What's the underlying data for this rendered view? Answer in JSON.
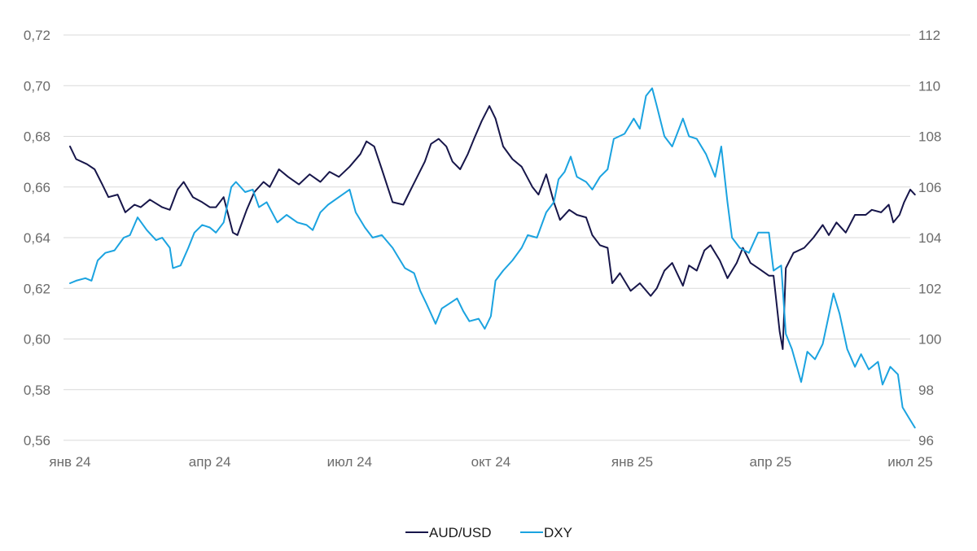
{
  "chart_data": {
    "type": "line",
    "title": "",
    "xlabel": "",
    "ylabel": "",
    "grid": true,
    "legend_position": "bottom",
    "x_tick_labels": [
      "янв 24",
      "апр 24",
      "июл 24",
      "окт 24",
      "янв 25",
      "апр 25",
      "июл 25"
    ],
    "x_tick_dates": [
      "2024-01-01",
      "2024-04-01",
      "2024-07-01",
      "2024-10-01",
      "2025-01-01",
      "2025-04-01",
      "2025-07-01"
    ],
    "xlim": [
      "2024-01-01",
      "2025-07-04"
    ],
    "y_left": {
      "ylim": [
        0.56,
        0.72
      ],
      "ticks": [
        0.56,
        0.58,
        0.6,
        0.62,
        0.64,
        0.66,
        0.68,
        0.7,
        0.72
      ],
      "tick_labels": [
        "0,56",
        "0,58",
        "0,60",
        "0,62",
        "0,64",
        "0,66",
        "0,68",
        "0,70",
        "0,72"
      ]
    },
    "y_right": {
      "ylim": [
        96,
        112
      ],
      "ticks": [
        96,
        98,
        100,
        102,
        104,
        106,
        108,
        110,
        112
      ],
      "tick_labels": [
        "96",
        "98",
        "100",
        "102",
        "104",
        "106",
        "108",
        "110",
        "112"
      ]
    },
    "series": [
      {
        "name": "AUD/USD",
        "axis": "left",
        "color": "#17164a",
        "points": [
          [
            "2024-01-01",
            0.676
          ],
          [
            "2024-01-05",
            0.671
          ],
          [
            "2024-01-12",
            0.669
          ],
          [
            "2024-01-17",
            0.667
          ],
          [
            "2024-01-22",
            0.661
          ],
          [
            "2024-01-26",
            0.656
          ],
          [
            "2024-02-01",
            0.657
          ],
          [
            "2024-02-06",
            0.65
          ],
          [
            "2024-02-12",
            0.653
          ],
          [
            "2024-02-16",
            0.652
          ],
          [
            "2024-02-22",
            0.655
          ],
          [
            "2024-03-01",
            0.652
          ],
          [
            "2024-03-06",
            0.651
          ],
          [
            "2024-03-11",
            0.659
          ],
          [
            "2024-03-15",
            0.662
          ],
          [
            "2024-03-21",
            0.656
          ],
          [
            "2024-03-27",
            0.654
          ],
          [
            "2024-04-01",
            0.652
          ],
          [
            "2024-04-05",
            0.652
          ],
          [
            "2024-04-10",
            0.656
          ],
          [
            "2024-04-16",
            0.642
          ],
          [
            "2024-04-19",
            0.641
          ],
          [
            "2024-04-25",
            0.651
          ],
          [
            "2024-04-30",
            0.658
          ],
          [
            "2024-05-06",
            0.662
          ],
          [
            "2024-05-10",
            0.66
          ],
          [
            "2024-05-16",
            0.667
          ],
          [
            "2024-05-22",
            0.664
          ],
          [
            "2024-05-29",
            0.661
          ],
          [
            "2024-06-05",
            0.665
          ],
          [
            "2024-06-12",
            0.662
          ],
          [
            "2024-06-18",
            0.666
          ],
          [
            "2024-06-24",
            0.664
          ],
          [
            "2024-07-01",
            0.668
          ],
          [
            "2024-07-08",
            0.673
          ],
          [
            "2024-07-12",
            0.678
          ],
          [
            "2024-07-17",
            0.676
          ],
          [
            "2024-07-22",
            0.667
          ],
          [
            "2024-07-29",
            0.654
          ],
          [
            "2024-08-05",
            0.653
          ],
          [
            "2024-08-09",
            0.658
          ],
          [
            "2024-08-14",
            0.664
          ],
          [
            "2024-08-19",
            0.67
          ],
          [
            "2024-08-23",
            0.677
          ],
          [
            "2024-08-28",
            0.679
          ],
          [
            "2024-09-02",
            0.676
          ],
          [
            "2024-09-06",
            0.67
          ],
          [
            "2024-09-11",
            0.667
          ],
          [
            "2024-09-16",
            0.673
          ],
          [
            "2024-09-20",
            0.679
          ],
          [
            "2024-09-25",
            0.686
          ],
          [
            "2024-09-30",
            0.692
          ],
          [
            "2024-10-04",
            0.687
          ],
          [
            "2024-10-09",
            0.676
          ],
          [
            "2024-10-15",
            0.671
          ],
          [
            "2024-10-21",
            0.668
          ],
          [
            "2024-10-28",
            0.66
          ],
          [
            "2024-11-01",
            0.657
          ],
          [
            "2024-11-06",
            0.665
          ],
          [
            "2024-11-11",
            0.654
          ],
          [
            "2024-11-15",
            0.647
          ],
          [
            "2024-11-21",
            0.651
          ],
          [
            "2024-11-26",
            0.649
          ],
          [
            "2024-12-02",
            0.648
          ],
          [
            "2024-12-06",
            0.641
          ],
          [
            "2024-12-11",
            0.637
          ],
          [
            "2024-12-16",
            0.636
          ],
          [
            "2024-12-19",
            0.622
          ],
          [
            "2024-12-24",
            0.626
          ],
          [
            "2024-12-31",
            0.619
          ],
          [
            "2025-01-06",
            0.622
          ],
          [
            "2025-01-13",
            0.617
          ],
          [
            "2025-01-17",
            0.62
          ],
          [
            "2025-01-22",
            0.627
          ],
          [
            "2025-01-27",
            0.63
          ],
          [
            "2025-02-03",
            0.621
          ],
          [
            "2025-02-07",
            0.629
          ],
          [
            "2025-02-12",
            0.627
          ],
          [
            "2025-02-17",
            0.635
          ],
          [
            "2025-02-21",
            0.637
          ],
          [
            "2025-02-27",
            0.631
          ],
          [
            "2025-03-04",
            0.624
          ],
          [
            "2025-03-10",
            0.63
          ],
          [
            "2025-03-14",
            0.636
          ],
          [
            "2025-03-19",
            0.63
          ],
          [
            "2025-03-24",
            0.628
          ],
          [
            "2025-03-31",
            0.625
          ],
          [
            "2025-04-03",
            0.625
          ],
          [
            "2025-04-07",
            0.603
          ],
          [
            "2025-04-09",
            0.596
          ],
          [
            "2025-04-11",
            0.628
          ],
          [
            "2025-04-16",
            0.634
          ],
          [
            "2025-04-23",
            0.636
          ],
          [
            "2025-04-29",
            0.64
          ],
          [
            "2025-05-05",
            0.645
          ],
          [
            "2025-05-09",
            0.641
          ],
          [
            "2025-05-14",
            0.646
          ],
          [
            "2025-05-20",
            0.642
          ],
          [
            "2025-05-26",
            0.649
          ],
          [
            "2025-06-02",
            0.649
          ],
          [
            "2025-06-06",
            0.651
          ],
          [
            "2025-06-12",
            0.65
          ],
          [
            "2025-06-17",
            0.653
          ],
          [
            "2025-06-20",
            0.646
          ],
          [
            "2025-06-24",
            0.649
          ],
          [
            "2025-06-27",
            0.654
          ],
          [
            "2025-07-01",
            0.659
          ],
          [
            "2025-07-04",
            0.657
          ]
        ]
      },
      {
        "name": "DXY",
        "axis": "right",
        "color": "#1ba3e0",
        "points": [
          [
            "2024-01-01",
            102.2
          ],
          [
            "2024-01-05",
            102.3
          ],
          [
            "2024-01-11",
            102.4
          ],
          [
            "2024-01-15",
            102.3
          ],
          [
            "2024-01-19",
            103.1
          ],
          [
            "2024-01-24",
            103.4
          ],
          [
            "2024-01-30",
            103.5
          ],
          [
            "2024-02-05",
            104.0
          ],
          [
            "2024-02-09",
            104.1
          ],
          [
            "2024-02-14",
            104.8
          ],
          [
            "2024-02-20",
            104.3
          ],
          [
            "2024-02-26",
            103.9
          ],
          [
            "2024-03-01",
            104.0
          ],
          [
            "2024-03-06",
            103.6
          ],
          [
            "2024-03-08",
            102.8
          ],
          [
            "2024-03-13",
            102.9
          ],
          [
            "2024-03-18",
            103.6
          ],
          [
            "2024-03-22",
            104.2
          ],
          [
            "2024-03-27",
            104.5
          ],
          [
            "2024-04-01",
            104.4
          ],
          [
            "2024-04-05",
            104.2
          ],
          [
            "2024-04-10",
            104.6
          ],
          [
            "2024-04-15",
            106.0
          ],
          [
            "2024-04-18",
            106.2
          ],
          [
            "2024-04-24",
            105.8
          ],
          [
            "2024-04-29",
            105.9
          ],
          [
            "2024-05-03",
            105.2
          ],
          [
            "2024-05-08",
            105.4
          ],
          [
            "2024-05-15",
            104.6
          ],
          [
            "2024-05-21",
            104.9
          ],
          [
            "2024-05-28",
            104.6
          ],
          [
            "2024-06-03",
            104.5
          ],
          [
            "2024-06-07",
            104.3
          ],
          [
            "2024-06-12",
            105.0
          ],
          [
            "2024-06-17",
            105.3
          ],
          [
            "2024-06-24",
            105.6
          ],
          [
            "2024-07-01",
            105.9
          ],
          [
            "2024-07-05",
            105.0
          ],
          [
            "2024-07-11",
            104.4
          ],
          [
            "2024-07-16",
            104.0
          ],
          [
            "2024-07-22",
            104.1
          ],
          [
            "2024-07-29",
            103.6
          ],
          [
            "2024-08-02",
            103.2
          ],
          [
            "2024-08-06",
            102.8
          ],
          [
            "2024-08-12",
            102.6
          ],
          [
            "2024-08-16",
            101.9
          ],
          [
            "2024-08-20",
            101.4
          ],
          [
            "2024-08-26",
            100.6
          ],
          [
            "2024-08-30",
            101.2
          ],
          [
            "2024-09-04",
            101.4
          ],
          [
            "2024-09-09",
            101.6
          ],
          [
            "2024-09-13",
            101.1
          ],
          [
            "2024-09-17",
            100.7
          ],
          [
            "2024-09-23",
            100.8
          ],
          [
            "2024-09-27",
            100.4
          ],
          [
            "2024-10-01",
            100.9
          ],
          [
            "2024-10-04",
            102.3
          ],
          [
            "2024-10-09",
            102.7
          ],
          [
            "2024-10-15",
            103.1
          ],
          [
            "2024-10-21",
            103.6
          ],
          [
            "2024-10-25",
            104.1
          ],
          [
            "2024-10-31",
            104.0
          ],
          [
            "2024-11-06",
            105.0
          ],
          [
            "2024-11-11",
            105.4
          ],
          [
            "2024-11-14",
            106.3
          ],
          [
            "2024-11-18",
            106.6
          ],
          [
            "2024-11-22",
            107.2
          ],
          [
            "2024-11-26",
            106.4
          ],
          [
            "2024-12-02",
            106.2
          ],
          [
            "2024-12-06",
            105.9
          ],
          [
            "2024-12-11",
            106.4
          ],
          [
            "2024-12-16",
            106.7
          ],
          [
            "2024-12-20",
            107.9
          ],
          [
            "2024-12-27",
            108.1
          ],
          [
            "2025-01-02",
            108.7
          ],
          [
            "2025-01-06",
            108.3
          ],
          [
            "2025-01-10",
            109.6
          ],
          [
            "2025-01-14",
            109.9
          ],
          [
            "2025-01-17",
            109.2
          ],
          [
            "2025-01-22",
            108.0
          ],
          [
            "2025-01-27",
            107.6
          ],
          [
            "2025-02-03",
            108.7
          ],
          [
            "2025-02-07",
            108.0
          ],
          [
            "2025-02-12",
            107.9
          ],
          [
            "2025-02-18",
            107.3
          ],
          [
            "2025-02-24",
            106.4
          ],
          [
            "2025-02-28",
            107.6
          ],
          [
            "2025-03-04",
            105.4
          ],
          [
            "2025-03-07",
            104.0
          ],
          [
            "2025-03-12",
            103.6
          ],
          [
            "2025-03-18",
            103.4
          ],
          [
            "2025-03-24",
            104.2
          ],
          [
            "2025-03-31",
            104.2
          ],
          [
            "2025-04-03",
            102.7
          ],
          [
            "2025-04-08",
            102.9
          ],
          [
            "2025-04-11",
            100.2
          ],
          [
            "2025-04-15",
            99.6
          ],
          [
            "2025-04-21",
            98.3
          ],
          [
            "2025-04-25",
            99.5
          ],
          [
            "2025-04-30",
            99.2
          ],
          [
            "2025-05-05",
            99.8
          ],
          [
            "2025-05-12",
            101.8
          ],
          [
            "2025-05-16",
            101.0
          ],
          [
            "2025-05-21",
            99.6
          ],
          [
            "2025-05-26",
            98.9
          ],
          [
            "2025-05-30",
            99.4
          ],
          [
            "2025-06-04",
            98.8
          ],
          [
            "2025-06-10",
            99.1
          ],
          [
            "2025-06-13",
            98.2
          ],
          [
            "2025-06-18",
            98.9
          ],
          [
            "2025-06-23",
            98.6
          ],
          [
            "2025-06-26",
            97.3
          ],
          [
            "2025-06-30",
            96.9
          ],
          [
            "2025-07-04",
            96.5
          ]
        ]
      }
    ]
  }
}
